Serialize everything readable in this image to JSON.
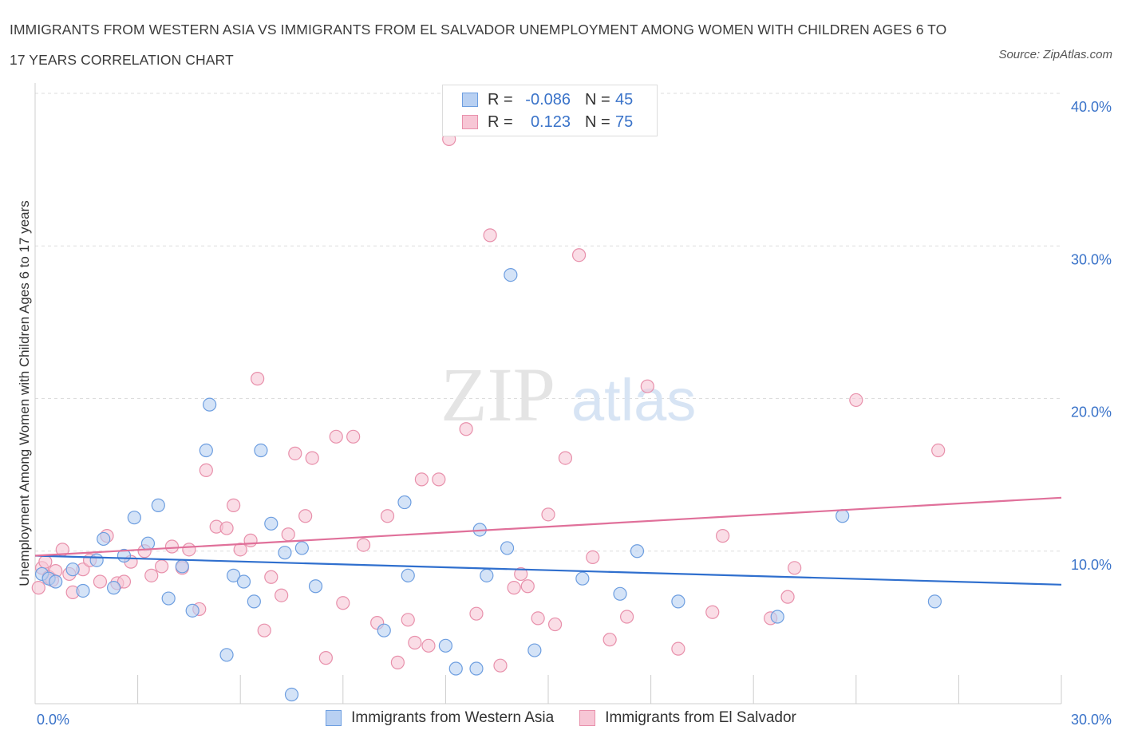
{
  "title": "IMMIGRANTS FROM WESTERN ASIA VS IMMIGRANTS FROM EL SALVADOR UNEMPLOYMENT AMONG WOMEN WITH CHILDREN AGES 6 TO 17 YEARS CORRELATION CHART",
  "source": "Source: ZipAtlas.com",
  "watermark": {
    "zip": "ZIP",
    "atlas": "atlas"
  },
  "legend": {
    "rows": [
      {
        "r_label": "R =",
        "r_value": "-0.086",
        "n_label": "N =",
        "n_value": "45"
      },
      {
        "r_label": "R =",
        "r_value": "0.123",
        "n_label": "N =",
        "n_value": "75"
      }
    ]
  },
  "colors": {
    "blue_fill": "#b8d0f2",
    "blue_stroke": "#6d9ee0",
    "blue_line": "#2f6fce",
    "pink_fill": "#f7c6d5",
    "pink_stroke": "#e890ab",
    "pink_line": "#e0709a",
    "axis_text": "#3a73c9",
    "grid": "#dddddd"
  },
  "chart_data": {
    "type": "scatter",
    "title": "IMMIGRANTS FROM WESTERN ASIA VS IMMIGRANTS FROM EL SALVADOR UNEMPLOYMENT AMONG WOMEN WITH CHILDREN AGES 6 TO 17 YEARS CORRELATION CHART",
    "xlabel": "",
    "ylabel": "Unemployment Among Women with Children Ages 6 to 17 years",
    "xlim": [
      0,
      30
    ],
    "ylim": [
      0,
      40
    ],
    "x_tick_labels": [
      "0.0%",
      "30.0%"
    ],
    "y_ticks": [
      10,
      20,
      30,
      40
    ],
    "y_tick_labels": [
      "10.0%",
      "20.0%",
      "30.0%",
      "40.0%"
    ],
    "grid": true,
    "legend_position": "top-center",
    "series": [
      {
        "name": "Immigrants from Western Asia",
        "color": "#6d9ee0",
        "points": [
          [
            0.2,
            8.5
          ],
          [
            0.4,
            8.2
          ],
          [
            0.6,
            8.0
          ],
          [
            1.1,
            8.8
          ],
          [
            1.4,
            7.4
          ],
          [
            1.8,
            9.4
          ],
          [
            2.0,
            10.8
          ],
          [
            2.3,
            7.6
          ],
          [
            2.6,
            9.7
          ],
          [
            2.9,
            12.2
          ],
          [
            3.3,
            10.5
          ],
          [
            3.6,
            13.0
          ],
          [
            3.9,
            6.9
          ],
          [
            4.3,
            9.0
          ],
          [
            4.6,
            6.1
          ],
          [
            5.0,
            16.6
          ],
          [
            5.1,
            19.6
          ],
          [
            5.6,
            3.2
          ],
          [
            5.8,
            8.4
          ],
          [
            6.1,
            8.0
          ],
          [
            6.4,
            6.7
          ],
          [
            6.6,
            16.6
          ],
          [
            6.9,
            11.8
          ],
          [
            7.3,
            9.9
          ],
          [
            7.5,
            0.6
          ],
          [
            7.8,
            10.2
          ],
          [
            8.2,
            7.7
          ],
          [
            10.2,
            4.8
          ],
          [
            10.8,
            13.2
          ],
          [
            10.9,
            8.4
          ],
          [
            12.0,
            3.8
          ],
          [
            12.3,
            2.3
          ],
          [
            12.9,
            2.3
          ],
          [
            13.0,
            11.4
          ],
          [
            13.2,
            8.4
          ],
          [
            13.8,
            10.2
          ],
          [
            13.9,
            28.1
          ],
          [
            14.6,
            3.5
          ],
          [
            16.0,
            8.2
          ],
          [
            17.1,
            7.2
          ],
          [
            17.6,
            10.0
          ],
          [
            18.8,
            6.7
          ],
          [
            21.7,
            5.7
          ],
          [
            23.6,
            12.3
          ],
          [
            26.3,
            6.7
          ]
        ]
      },
      {
        "name": "Immigrants from El Salvador",
        "color": "#e890ab",
        "points": [
          [
            0.2,
            8.9
          ],
          [
            0.4,
            8.3
          ],
          [
            0.6,
            8.7
          ],
          [
            0.8,
            10.1
          ],
          [
            1.0,
            8.5
          ],
          [
            1.1,
            7.3
          ],
          [
            1.4,
            8.8
          ],
          [
            1.6,
            9.4
          ],
          [
            1.9,
            8.0
          ],
          [
            2.1,
            11.0
          ],
          [
            2.4,
            7.9
          ],
          [
            2.6,
            8.0
          ],
          [
            2.8,
            9.3
          ],
          [
            3.2,
            10.0
          ],
          [
            3.4,
            8.4
          ],
          [
            3.7,
            9.0
          ],
          [
            4.0,
            10.3
          ],
          [
            4.3,
            8.9
          ],
          [
            4.5,
            10.1
          ],
          [
            4.8,
            6.2
          ],
          [
            5.0,
            15.3
          ],
          [
            5.3,
            11.6
          ],
          [
            5.6,
            11.5
          ],
          [
            5.8,
            13.0
          ],
          [
            6.0,
            10.1
          ],
          [
            6.3,
            10.7
          ],
          [
            6.5,
            21.3
          ],
          [
            6.7,
            4.8
          ],
          [
            6.9,
            8.3
          ],
          [
            7.2,
            7.1
          ],
          [
            7.4,
            11.1
          ],
          [
            7.6,
            16.4
          ],
          [
            7.9,
            12.3
          ],
          [
            8.1,
            16.1
          ],
          [
            8.5,
            3.0
          ],
          [
            8.8,
            17.5
          ],
          [
            9.0,
            6.6
          ],
          [
            9.3,
            17.5
          ],
          [
            9.6,
            10.4
          ],
          [
            10.0,
            5.3
          ],
          [
            10.3,
            12.3
          ],
          [
            10.6,
            2.7
          ],
          [
            10.9,
            5.5
          ],
          [
            11.1,
            4.0
          ],
          [
            11.3,
            14.7
          ],
          [
            11.5,
            3.8
          ],
          [
            11.8,
            14.7
          ],
          [
            12.1,
            37.0
          ],
          [
            12.6,
            18.0
          ],
          [
            12.9,
            5.9
          ],
          [
            13.3,
            30.7
          ],
          [
            13.6,
            2.5
          ],
          [
            14.0,
            7.6
          ],
          [
            14.2,
            8.5
          ],
          [
            14.4,
            7.7
          ],
          [
            14.7,
            5.6
          ],
          [
            15.0,
            12.4
          ],
          [
            15.2,
            5.2
          ],
          [
            15.5,
            16.1
          ],
          [
            15.9,
            29.4
          ],
          [
            16.3,
            9.6
          ],
          [
            16.8,
            4.2
          ],
          [
            17.3,
            5.7
          ],
          [
            17.9,
            20.8
          ],
          [
            18.8,
            3.6
          ],
          [
            19.8,
            6.0
          ],
          [
            20.1,
            11.0
          ],
          [
            21.5,
            5.6
          ],
          [
            22.0,
            7.0
          ],
          [
            22.2,
            8.9
          ],
          [
            24.0,
            19.9
          ],
          [
            26.4,
            16.6
          ],
          [
            0.1,
            7.6
          ],
          [
            0.3,
            9.3
          ],
          [
            0.5,
            8.1
          ]
        ]
      }
    ],
    "trend_lines": [
      {
        "series": "Immigrants from Western Asia",
        "x": [
          0,
          30
        ],
        "y": [
          9.7,
          7.8
        ]
      },
      {
        "series": "Immigrants from El Salvador",
        "x": [
          0,
          30
        ],
        "y": [
          9.7,
          13.5
        ]
      }
    ]
  }
}
